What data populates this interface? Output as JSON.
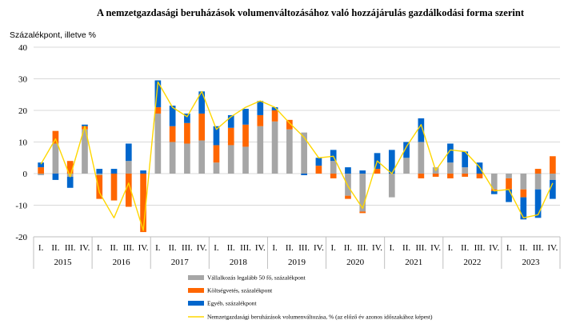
{
  "chart_data": {
    "type": "bar",
    "title": "A nemzetgazdasági beruházások volumenváltozásához való hozzájárulás gazdálkodási forma szerint",
    "ylabel": "Százalékpont, illetve %",
    "ylim": [
      -20,
      40
    ],
    "yticks": [
      -20,
      -10,
      0,
      10,
      20,
      30,
      40
    ],
    "grid": true,
    "stacked": true,
    "legend_position": "bottom",
    "quarters": [
      "I.",
      "II.",
      "III.",
      "IV."
    ],
    "years": [
      "2015",
      "2016",
      "2017",
      "2018",
      "2019",
      "2020",
      "2021",
      "2022",
      "2023"
    ],
    "series": [
      {
        "name": "Vállalkozás legalább 50 fő, százalékpont",
        "color": "#a6a6a6",
        "kind": "bar",
        "values": [
          -0.5,
          9.5,
          -1.0,
          14.0,
          -0.5,
          0.0,
          4.0,
          0.0,
          19.0,
          10.0,
          9.5,
          10.5,
          3.5,
          9.0,
          8.5,
          15.0,
          16.5,
          14.0,
          13.0,
          0.0,
          4.0,
          -7.0,
          -12.0,
          0.0,
          -7.5,
          5.0,
          10.0,
          2.0,
          3.5,
          2.0,
          0.0,
          -5.0,
          -1.5,
          -5.0,
          -5.0,
          -2.0
        ]
      },
      {
        "name": "Költségvetés, százalékpont",
        "color": "#ff6600",
        "kind": "bar",
        "values": [
          2.0,
          4.0,
          4.0,
          1.0,
          -7.5,
          -8.5,
          -10.5,
          -18.5,
          2.0,
          5.0,
          6.5,
          8.5,
          5.5,
          5.5,
          7.0,
          3.5,
          3.5,
          3.0,
          0.0,
          2.5,
          -1.5,
          -1.0,
          -0.5,
          1.5,
          0.0,
          0.0,
          -1.5,
          -1.0,
          -1.5,
          -1.0,
          -1.5,
          -0.5,
          -3.5,
          -2.5,
          1.5,
          5.5
        ]
      },
      {
        "name": "Egyéb, százalékpont",
        "color": "#0066cc",
        "kind": "bar",
        "values": [
          1.5,
          -2.0,
          -3.5,
          0.5,
          1.5,
          1.5,
          5.5,
          1.0,
          8.5,
          6.5,
          3.0,
          7.0,
          6.0,
          4.0,
          5.0,
          4.5,
          1.0,
          0.0,
          -0.5,
          2.5,
          3.5,
          2.0,
          1.0,
          5.0,
          7.5,
          5.0,
          7.5,
          0.0,
          6.0,
          5.0,
          3.5,
          -1.0,
          -4.0,
          -7.0,
          -9.0,
          -6.0
        ]
      },
      {
        "name": "Nemzetgazdasági beruházások volumenváltozása, % (az előző év azonos időszakához képest)",
        "color": "#ffd700",
        "kind": "line",
        "values": [
          3.0,
          11.0,
          -1.0,
          15.0,
          -6.0,
          -14.0,
          -3.0,
          -18.0,
          29.0,
          21.0,
          18.0,
          26.0,
          14.0,
          18.0,
          21.0,
          23.0,
          21.0,
          16.0,
          11.5,
          5.0,
          5.5,
          -4.0,
          -11.0,
          4.0,
          0.0,
          8.5,
          15.5,
          1.0,
          7.5,
          7.0,
          2.0,
          -5.5,
          -5.0,
          -14.0,
          -13.0,
          -3.0
        ]
      }
    ]
  }
}
